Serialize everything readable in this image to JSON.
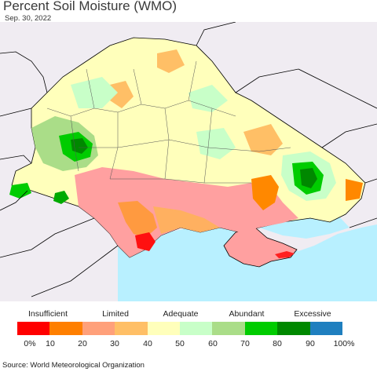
{
  "title": "Percent Soil Moisture (WMO)",
  "date": "Sep. 30, 2022",
  "source": "Source: World Meteorological Organization",
  "legend": {
    "categories": [
      "Insufficient",
      "Limited",
      "Adequate",
      "Abundant",
      "Excessive"
    ],
    "ticks": [
      "0%",
      "10",
      "20",
      "30",
      "40",
      "50",
      "60",
      "70",
      "80",
      "90",
      "100%"
    ],
    "colors": [
      "#ff0000",
      "#ff7f00",
      "#ffa07a",
      "#ffbf66",
      "#ffffbb",
      "#c8ffc8",
      "#aadd88",
      "#00cc00",
      "#008800",
      "#1f7fbf"
    ]
  },
  "map_colors": {
    "sea": "#b8f0ff",
    "outside_land": "#f0ecf2",
    "border": "#000000"
  }
}
